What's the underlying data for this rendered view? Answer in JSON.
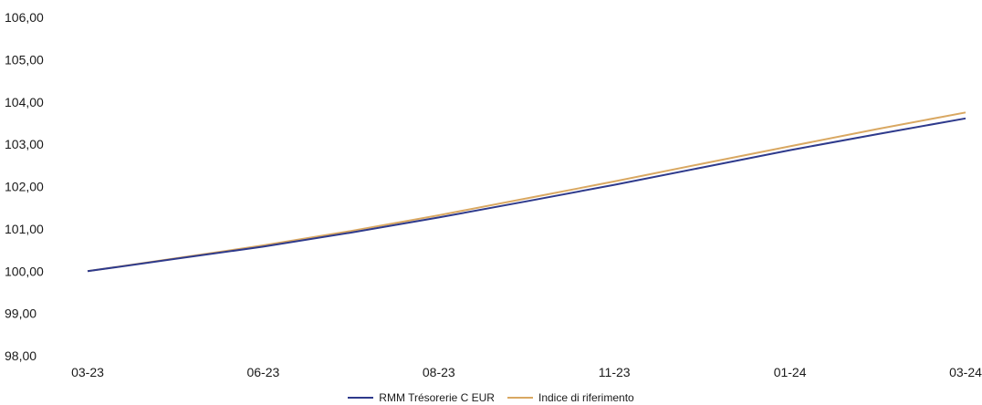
{
  "chart_data": {
    "type": "line",
    "y_ticks": [
      "98,00",
      "99,00",
      "100,00",
      "101,00",
      "102,00",
      "103,00",
      "104,00",
      "105,00",
      "106,00"
    ],
    "x_ticks": [
      "03-23",
      "06-23",
      "08-23",
      "11-23",
      "01-24",
      "03-24"
    ],
    "ylim": [
      98,
      106
    ],
    "grid": false,
    "legend_position": "bottom",
    "series": [
      {
        "name": "RMM Trésorerie C EUR",
        "color": "#2e3a8c",
        "values": [
          100.0,
          100.29,
          100.58,
          100.91,
          101.27,
          101.65,
          102.04,
          102.45,
          102.86,
          103.24,
          103.61
        ]
      },
      {
        "name": "Indice di riferimento",
        "color": "#d9a862",
        "values": [
          100.0,
          100.3,
          100.61,
          100.95,
          101.32,
          101.72,
          102.12,
          102.54,
          102.95,
          103.36,
          103.75
        ]
      }
    ]
  }
}
